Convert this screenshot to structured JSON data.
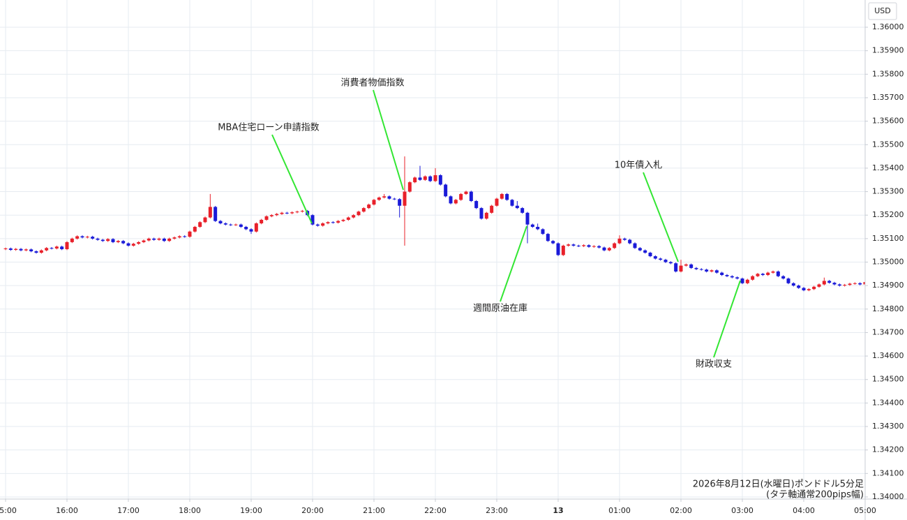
{
  "chart_data": {
    "type": "candlestick",
    "y_axis_label": "USD",
    "up_color": "#e8202a",
    "down_color": "#1a1ad8",
    "grid": true,
    "ylim": [
      1.33991,
      1.36116
    ],
    "yticks": [
      {
        "value": 1.34,
        "label": "1.34000"
      },
      {
        "value": 1.341,
        "label": "1.34100"
      },
      {
        "value": 1.342,
        "label": "1.34200"
      },
      {
        "value": 1.343,
        "label": "1.34300"
      },
      {
        "value": 1.344,
        "label": "1.34400"
      },
      {
        "value": 1.345,
        "label": "1.34500"
      },
      {
        "value": 1.346,
        "label": "1.34600"
      },
      {
        "value": 1.347,
        "label": "1.34700"
      },
      {
        "value": 1.348,
        "label": "1.34800"
      },
      {
        "value": 1.349,
        "label": "1.34900"
      },
      {
        "value": 1.35,
        "label": "1.35000"
      },
      {
        "value": 1.351,
        "label": "1.35100"
      },
      {
        "value": 1.352,
        "label": "1.35200"
      },
      {
        "value": 1.353,
        "label": "1.35300"
      },
      {
        "value": 1.354,
        "label": "1.35400"
      },
      {
        "value": 1.355,
        "label": "1.35500"
      },
      {
        "value": 1.356,
        "label": "1.35600"
      },
      {
        "value": 1.357,
        "label": "1.35700"
      },
      {
        "value": 1.358,
        "label": "1.35800"
      },
      {
        "value": 1.359,
        "label": "1.35900"
      },
      {
        "value": 1.36,
        "label": "1.36000"
      }
    ],
    "xlim": [
      -1.09,
      168.0
    ],
    "xticks": [
      {
        "value": 0,
        "label": "15:00"
      },
      {
        "value": 12,
        "label": "16:00"
      },
      {
        "value": 24,
        "label": "17:00"
      },
      {
        "value": 36,
        "label": "18:00"
      },
      {
        "value": 48,
        "label": "19:00"
      },
      {
        "value": 60,
        "label": "20:00"
      },
      {
        "value": 72,
        "label": "21:00"
      },
      {
        "value": 84,
        "label": "22:00"
      },
      {
        "value": 96,
        "label": "23:00"
      },
      {
        "value": 108,
        "label": "13"
      },
      {
        "value": 120,
        "label": "01:00"
      },
      {
        "value": 132,
        "label": "02:00"
      },
      {
        "value": 144,
        "label": "03:00"
      },
      {
        "value": 156,
        "label": "04:00"
      },
      {
        "value": 168,
        "label": "05:00"
      }
    ],
    "open": [
      1.35055,
      1.35058,
      1.35052,
      1.35056,
      1.3505,
      1.35054,
      1.35046,
      1.3504,
      1.3505,
      1.3506,
      1.35058,
      1.35066,
      1.35055,
      1.35085,
      1.351,
      1.3511,
      1.35105,
      1.35108,
      1.351,
      1.35095,
      1.3509,
      1.35098,
      1.35085,
      1.3509,
      1.3508,
      1.3507,
      1.35078,
      1.35085,
      1.35092,
      1.351,
      1.35095,
      1.351,
      1.3509,
      1.351,
      1.35105,
      1.3511,
      1.35108,
      1.3513,
      1.3515,
      1.3517,
      1.3519,
      1.35235,
      1.35175,
      1.35165,
      1.3516,
      1.35158,
      1.3516,
      1.3515,
      1.3514,
      1.3513,
      1.35165,
      1.3518,
      1.35195,
      1.352,
      1.35205,
      1.3521,
      1.35208,
      1.35212,
      1.35215,
      1.35218,
      1.352,
      1.3516,
      1.35155,
      1.35165,
      1.3517,
      1.35168,
      1.35175,
      1.3518,
      1.3519,
      1.352,
      1.35215,
      1.3523,
      1.35245,
      1.35265,
      1.35275,
      1.3528,
      1.3527,
      1.35268,
      1.3524,
      1.353,
      1.3534,
      1.3536,
      1.3535,
      1.35365,
      1.35345,
      1.3537,
      1.3533,
      1.3528,
      1.3525,
      1.35265,
      1.3529,
      1.353,
      1.3526,
      1.3523,
      1.35185,
      1.3521,
      1.3524,
      1.3527,
      1.3529,
      1.35265,
      1.3524,
      1.3523,
      1.3521,
      1.3516,
      1.3515,
      1.3514,
      1.3512,
      1.3509,
      1.3508,
      1.3503,
      1.3507,
      1.35075,
      1.3507,
      1.35068,
      1.35072,
      1.35065,
      1.35068,
      1.35062,
      1.3505,
      1.3506,
      1.3508,
      1.351,
      1.35095,
      1.3508,
      1.3506,
      1.3505,
      1.3504,
      1.35025,
      1.35015,
      1.3501,
      1.35,
      1.34995,
      1.3496,
      1.34985,
      1.3499,
      1.34975,
      1.3497,
      1.34968,
      1.3496,
      1.34965,
      1.34955,
      1.34945,
      1.3494,
      1.34935,
      1.3493,
      1.3491,
      1.34925,
      1.3494,
      1.3495,
      1.34945,
      1.34955,
      1.3496,
      1.3494,
      1.3493,
      1.3491,
      1.349,
      1.3489,
      1.3488,
      1.34885,
      1.34895,
      1.34905,
      1.3492,
      1.34912,
      1.34905,
      1.349,
      1.34903,
      1.34908,
      1.3491,
      1.34905
    ],
    "high": [
      1.35062,
      1.35062,
      1.3506,
      1.3506,
      1.35058,
      1.35058,
      1.3505,
      1.35054,
      1.35064,
      1.35064,
      1.3507,
      1.3507,
      1.35089,
      1.35104,
      1.35114,
      1.35114,
      1.35112,
      1.35112,
      1.35104,
      1.35099,
      1.35102,
      1.35102,
      1.35094,
      1.35094,
      1.35084,
      1.35082,
      1.35089,
      1.35096,
      1.35104,
      1.35104,
      1.35104,
      1.35104,
      1.35104,
      1.35109,
      1.35114,
      1.35114,
      1.35134,
      1.35154,
      1.35174,
      1.35194,
      1.3529,
      1.35239,
      1.35179,
      1.35169,
      1.35164,
      1.35164,
      1.35164,
      1.35154,
      1.35144,
      1.35169,
      1.35184,
      1.35199,
      1.35204,
      1.35209,
      1.35214,
      1.35214,
      1.35216,
      1.35219,
      1.35222,
      1.35222,
      1.35204,
      1.35164,
      1.35169,
      1.35174,
      1.35174,
      1.35179,
      1.35184,
      1.35194,
      1.35204,
      1.35219,
      1.35234,
      1.35249,
      1.35269,
      1.35279,
      1.3529,
      1.35284,
      1.35274,
      1.35272,
      1.3545,
      1.35344,
      1.35364,
      1.3541,
      1.35369,
      1.35369,
      1.354,
      1.35374,
      1.35334,
      1.35284,
      1.35269,
      1.35294,
      1.35304,
      1.35304,
      1.35264,
      1.35234,
      1.35214,
      1.35244,
      1.35274,
      1.35294,
      1.35294,
      1.35269,
      1.3526,
      1.35234,
      1.35214,
      1.35164,
      1.35164,
      1.35144,
      1.35124,
      1.35094,
      1.35084,
      1.35074,
      1.35079,
      1.35079,
      1.35074,
      1.35076,
      1.35076,
      1.35072,
      1.35072,
      1.35066,
      1.35064,
      1.35084,
      1.35114,
      1.35104,
      1.35099,
      1.35084,
      1.35064,
      1.35054,
      1.35044,
      1.35029,
      1.35019,
      1.35014,
      1.35004,
      1.34999,
      1.3501,
      1.34994,
      1.34994,
      1.34979,
      1.34974,
      1.34972,
      1.34969,
      1.34969,
      1.34959,
      1.34949,
      1.34944,
      1.34939,
      1.34934,
      1.34929,
      1.34944,
      1.34954,
      1.34954,
      1.34959,
      1.34964,
      1.34964,
      1.34944,
      1.34934,
      1.34914,
      1.34904,
      1.34894,
      1.34889,
      1.34899,
      1.34909,
      1.34934,
      1.34924,
      1.34916,
      1.34909,
      1.34907,
      1.34912,
      1.34914,
      1.34914,
      1.34919
    ],
    "low": [
      1.35051,
      1.35048,
      1.35048,
      1.35046,
      1.35046,
      1.35042,
      1.35036,
      1.35036,
      1.35046,
      1.35054,
      1.35054,
      1.35051,
      1.35051,
      1.35081,
      1.35096,
      1.35101,
      1.35101,
      1.35096,
      1.35091,
      1.35086,
      1.35086,
      1.35081,
      1.35081,
      1.35076,
      1.35066,
      1.35066,
      1.35074,
      1.35081,
      1.35088,
      1.35091,
      1.35091,
      1.35086,
      1.35086,
      1.35096,
      1.35101,
      1.35104,
      1.35104,
      1.35126,
      1.35146,
      1.35166,
      1.35186,
      1.35171,
      1.35161,
      1.35156,
      1.35154,
      1.35154,
      1.35146,
      1.35136,
      1.3512,
      1.35126,
      1.35161,
      1.35176,
      1.35191,
      1.35196,
      1.35201,
      1.35204,
      1.35204,
      1.35208,
      1.35211,
      1.35196,
      1.35156,
      1.35151,
      1.35151,
      1.35161,
      1.35164,
      1.35164,
      1.35171,
      1.35176,
      1.35186,
      1.35196,
      1.35211,
      1.35226,
      1.35241,
      1.35261,
      1.35271,
      1.35266,
      1.35264,
      1.3519,
      1.3507,
      1.35296,
      1.35336,
      1.35346,
      1.35346,
      1.35341,
      1.35341,
      1.35326,
      1.35276,
      1.35246,
      1.35246,
      1.35261,
      1.35286,
      1.35256,
      1.35226,
      1.35181,
      1.35181,
      1.35206,
      1.35236,
      1.35266,
      1.35261,
      1.35236,
      1.35226,
      1.35206,
      1.3508,
      1.35146,
      1.35136,
      1.35116,
      1.35086,
      1.35076,
      1.35026,
      1.35026,
      1.35066,
      1.35066,
      1.35064,
      1.35064,
      1.35061,
      1.35061,
      1.35058,
      1.35046,
      1.35046,
      1.35056,
      1.35076,
      1.35091,
      1.35076,
      1.35056,
      1.35046,
      1.35036,
      1.35021,
      1.35011,
      1.35006,
      1.34996,
      1.34991,
      1.34956,
      1.34956,
      1.34981,
      1.34971,
      1.34966,
      1.34964,
      1.34956,
      1.34956,
      1.34951,
      1.34941,
      1.34936,
      1.34931,
      1.34926,
      1.34906,
      1.34906,
      1.34921,
      1.34936,
      1.34941,
      1.34941,
      1.34951,
      1.34936,
      1.34926,
      1.34906,
      1.34896,
      1.34886,
      1.34876,
      1.34876,
      1.34881,
      1.34891,
      1.34901,
      1.34908,
      1.34901,
      1.34896,
      1.34896,
      1.34899,
      1.34904,
      1.34901,
      1.34901
    ],
    "close": [
      1.35058,
      1.35052,
      1.35056,
      1.3505,
      1.35054,
      1.35046,
      1.3504,
      1.3505,
      1.3506,
      1.35058,
      1.35066,
      1.35055,
      1.35085,
      1.351,
      1.3511,
      1.35105,
      1.35108,
      1.351,
      1.35095,
      1.3509,
      1.35098,
      1.35085,
      1.3509,
      1.3508,
      1.3507,
      1.35078,
      1.35085,
      1.35092,
      1.351,
      1.35095,
      1.351,
      1.3509,
      1.351,
      1.35105,
      1.3511,
      1.35108,
      1.3513,
      1.3515,
      1.3517,
      1.3519,
      1.35235,
      1.35175,
      1.35165,
      1.3516,
      1.35158,
      1.3516,
      1.3515,
      1.3514,
      1.3513,
      1.35165,
      1.3518,
      1.35195,
      1.352,
      1.35205,
      1.3521,
      1.35208,
      1.35212,
      1.35215,
      1.35218,
      1.352,
      1.3516,
      1.35155,
      1.35165,
      1.3517,
      1.35168,
      1.35175,
      1.3518,
      1.3519,
      1.352,
      1.35215,
      1.3523,
      1.35245,
      1.35265,
      1.35275,
      1.3528,
      1.3527,
      1.35268,
      1.3524,
      1.353,
      1.3534,
      1.3536,
      1.3535,
      1.35365,
      1.35345,
      1.3537,
      1.3533,
      1.3528,
      1.3525,
      1.35265,
      1.3529,
      1.353,
      1.3526,
      1.3523,
      1.35185,
      1.3521,
      1.3524,
      1.3527,
      1.3529,
      1.35265,
      1.3524,
      1.3523,
      1.3521,
      1.3516,
      1.3515,
      1.3514,
      1.3512,
      1.3509,
      1.3508,
      1.3503,
      1.3507,
      1.35075,
      1.3507,
      1.35068,
      1.35072,
      1.35065,
      1.35068,
      1.35062,
      1.3505,
      1.3506,
      1.3508,
      1.351,
      1.35095,
      1.3508,
      1.3506,
      1.3505,
      1.3504,
      1.35025,
      1.35015,
      1.3501,
      1.35,
      1.34995,
      1.3496,
      1.34985,
      1.3499,
      1.34975,
      1.3497,
      1.34968,
      1.3496,
      1.34965,
      1.34955,
      1.34945,
      1.3494,
      1.34935,
      1.3493,
      1.3491,
      1.34925,
      1.3494,
      1.3495,
      1.34945,
      1.34955,
      1.3496,
      1.3494,
      1.3493,
      1.3491,
      1.349,
      1.3489,
      1.3488,
      1.34885,
      1.34895,
      1.34905,
      1.3492,
      1.34912,
      1.34905,
      1.349,
      1.34903,
      1.34908,
      1.3491,
      1.34905,
      1.34915
    ],
    "annotations": [
      {
        "text": "MBA住宅ローン申請指数"
      },
      {
        "text": "消費者物価指数"
      },
      {
        "text": "週間原油在庫"
      },
      {
        "text": "10年債入札"
      },
      {
        "text": "財政収支"
      }
    ],
    "footnote": [
      "2026年8月12日(水曜日)ポンドドル5分足",
      "(タテ軸通常200pips幅)"
    ]
  }
}
